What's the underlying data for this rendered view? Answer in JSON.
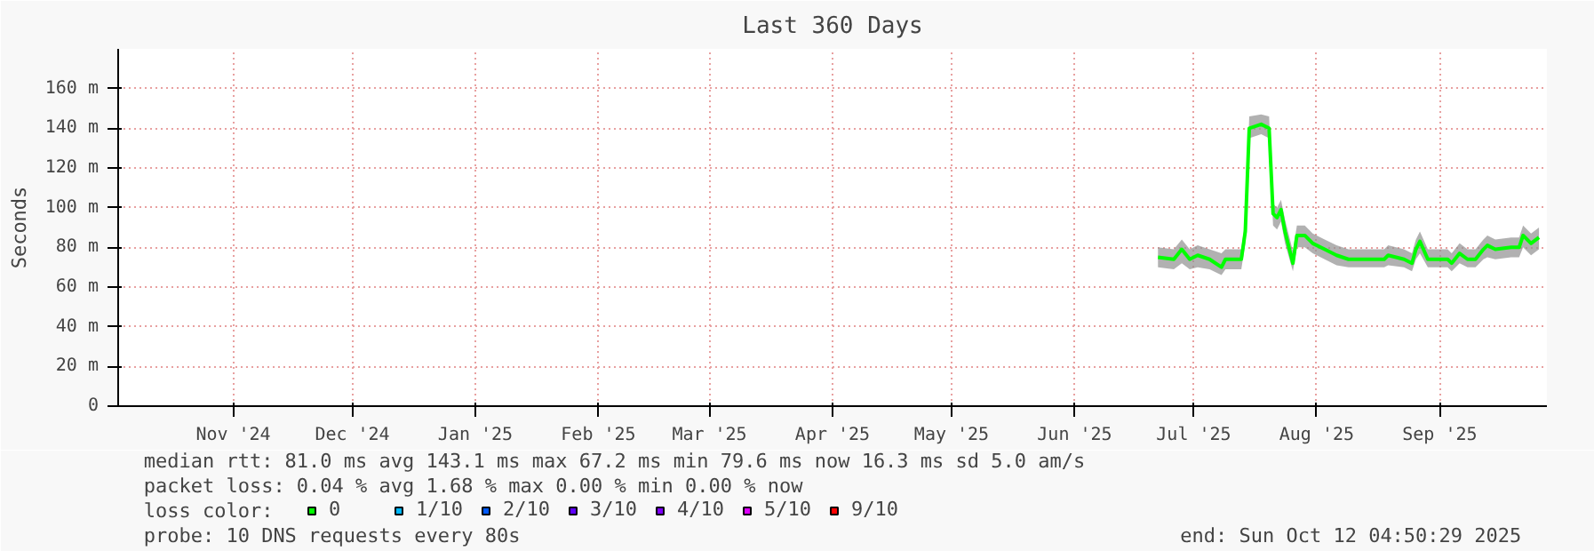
{
  "chart_data": {
    "type": "line",
    "title": "Last 360 Days",
    "ylabel": "Seconds",
    "legend_title": "loss color:",
    "x": [
      "2025-07-06",
      "2025-07-10",
      "2025-07-12",
      "2025-07-14",
      "2025-07-16",
      "2025-07-19",
      "2025-07-22",
      "2025-07-23",
      "2025-07-27",
      "2025-07-28",
      "2025-07-29",
      "2025-08-01",
      "2025-08-03",
      "2025-08-04",
      "2025-08-05",
      "2025-08-06",
      "2025-08-07",
      "2025-08-09",
      "2025-08-10",
      "2025-08-12",
      "2025-08-14",
      "2025-08-17",
      "2025-08-20",
      "2025-08-23",
      "2025-08-28",
      "2025-09-01",
      "2025-09-02",
      "2025-09-06",
      "2025-09-08",
      "2025-09-09",
      "2025-09-10",
      "2025-09-12",
      "2025-09-17",
      "2025-09-18",
      "2025-09-20",
      "2025-09-22",
      "2025-09-24",
      "2025-09-26",
      "2025-09-27",
      "2025-09-29",
      "2025-10-03",
      "2025-10-05",
      "2025-10-06",
      "2025-10-08",
      "2025-10-10"
    ],
    "series": [
      {
        "name": "0",
        "color": "#00ff00",
        "values": [
          75,
          74,
          79,
          74,
          76,
          74,
          70,
          74,
          74,
          88,
          140,
          142,
          140,
          97,
          95,
          99,
          88,
          72,
          86,
          86,
          82,
          79,
          76,
          74,
          74,
          74,
          76,
          74,
          72,
          79,
          83,
          74,
          74,
          72,
          77,
          74,
          74,
          79,
          81,
          79,
          80,
          80,
          86,
          82,
          85
        ],
        "lower": [
          70,
          69,
          72,
          69,
          70,
          69,
          66,
          69,
          69,
          82,
          135,
          137,
          135,
          91,
          89,
          93,
          82,
          68,
          80,
          80,
          77,
          74,
          71,
          70,
          70,
          70,
          71,
          70,
          68,
          74,
          77,
          70,
          70,
          68,
          72,
          70,
          70,
          74,
          75,
          74,
          75,
          75,
          80,
          76,
          79
        ],
        "upper": [
          80,
          79,
          84,
          79,
          81,
          79,
          77,
          79,
          79,
          94,
          146,
          147,
          146,
          102,
          100,
          104,
          94,
          78,
          91,
          91,
          87,
          84,
          81,
          79,
          79,
          79,
          81,
          79,
          77,
          84,
          88,
          79,
          79,
          77,
          82,
          79,
          79,
          84,
          86,
          84,
          85,
          85,
          91,
          87,
          90
        ]
      },
      {
        "name": "1/10",
        "color": "#00b8ff",
        "values": [
          null,
          null,
          null,
          null,
          null,
          null,
          null,
          null,
          null,
          null,
          null,
          null,
          null,
          null,
          null,
          null,
          null,
          null,
          null,
          null,
          null,
          null,
          null,
          null,
          null,
          null,
          null,
          null,
          null,
          null,
          null,
          null,
          null,
          null,
          null,
          null,
          null,
          null,
          null,
          null,
          null,
          null,
          null,
          null,
          null
        ]
      },
      {
        "name": "2/10",
        "color": "#0059ff",
        "values": [
          null,
          null,
          null,
          null,
          null,
          null,
          null,
          null,
          null,
          null,
          null,
          null,
          null,
          null,
          null,
          null,
          null,
          null,
          null,
          null,
          null,
          null,
          null,
          null,
          null,
          null,
          null,
          null,
          null,
          null,
          null,
          null,
          null,
          null,
          null,
          null,
          null,
          null,
          null,
          null,
          null,
          null,
          null,
          null,
          null
        ]
      },
      {
        "name": "3/10",
        "color": "#5e00ff",
        "values": [
          null,
          null,
          null,
          null,
          null,
          null,
          null,
          null,
          null,
          null,
          null,
          null,
          null,
          null,
          null,
          null,
          null,
          null,
          null,
          null,
          null,
          null,
          null,
          null,
          null,
          null,
          null,
          null,
          null,
          null,
          null,
          null,
          null,
          null,
          null,
          null,
          null,
          null,
          null,
          null,
          null,
          null,
          null,
          null,
          null
        ]
      },
      {
        "name": "4/10",
        "color": "#7e00ff",
        "values": [
          null,
          null,
          null,
          null,
          null,
          null,
          null,
          null,
          null,
          null,
          null,
          null,
          null,
          null,
          null,
          null,
          null,
          null,
          null,
          null,
          null,
          null,
          null,
          null,
          null,
          null,
          null,
          null,
          null,
          null,
          null,
          null,
          null,
          null,
          null,
          null,
          null,
          null,
          null,
          null,
          null,
          null,
          null,
          null,
          null
        ]
      },
      {
        "name": "5/10",
        "color": "#dd00ff",
        "values": [
          null,
          null,
          null,
          null,
          null,
          null,
          null,
          null,
          null,
          null,
          null,
          null,
          null,
          null,
          null,
          null,
          null,
          null,
          null,
          null,
          null,
          null,
          null,
          null,
          null,
          null,
          null,
          null,
          null,
          null,
          null,
          null,
          null,
          null,
          null,
          null,
          null,
          null,
          null,
          null,
          null,
          null,
          null,
          null,
          null
        ]
      },
      {
        "name": "9/10",
        "color": "#ff0000",
        "values": [
          null,
          null,
          null,
          null,
          null,
          null,
          null,
          null,
          null,
          null,
          null,
          null,
          null,
          null,
          null,
          null,
          null,
          null,
          null,
          null,
          null,
          null,
          null,
          null,
          null,
          null,
          null,
          null,
          null,
          null,
          null,
          null,
          null,
          null,
          null,
          null,
          null,
          null,
          null,
          null,
          null,
          null,
          null,
          null,
          null
        ]
      }
    ],
    "xlim": [
      "2024-10-17",
      "2025-10-12"
    ],
    "xticks": [
      {
        "value": "2024-11-15",
        "label": "Nov '24"
      },
      {
        "value": "2024-12-15",
        "label": "Dec '24"
      },
      {
        "value": "2025-01-15",
        "label": "Jan '25"
      },
      {
        "value": "2025-02-15",
        "label": "Feb '25"
      },
      {
        "value": "2025-03-15",
        "label": "Mar '25"
      },
      {
        "value": "2025-04-15",
        "label": "Apr '25"
      },
      {
        "value": "2025-05-15",
        "label": "May '25"
      },
      {
        "value": "2025-06-15",
        "label": "Jun '25"
      },
      {
        "value": "2025-07-15",
        "label": "Jul '25"
      },
      {
        "value": "2025-08-15",
        "label": "Aug '25"
      },
      {
        "value": "2025-09-15",
        "label": "Sep '25"
      }
    ],
    "ylim": [
      0,
      180
    ],
    "yticks": [
      0,
      {
        "value": 20,
        "label": "20 m"
      },
      {
        "value": 40,
        "label": "40 m"
      },
      {
        "value": 60,
        "label": "60 m"
      },
      {
        "value": 80,
        "label": "80 m"
      },
      {
        "value": 100,
        "label": "100 m"
      },
      {
        "value": 120,
        "label": "120 m"
      },
      {
        "value": 140,
        "label": "140 m"
      },
      {
        "value": 160,
        "label": "160 m"
      }
    ],
    "grid": true,
    "legend": "bottom left",
    "annotations": [
      "median rtt:  81.0 ms avg  143.1 ms max  67.2 ms min  79.6 ms now  16.3 ms sd  5.0   am/s",
      "packet loss: 0.04 % avg  1.68 % max  0.00 % min  0.00 % now",
      "probe:       10 DNS requests every 80s",
      "end: Sun Oct 12 04:50:29 2025"
    ]
  }
}
